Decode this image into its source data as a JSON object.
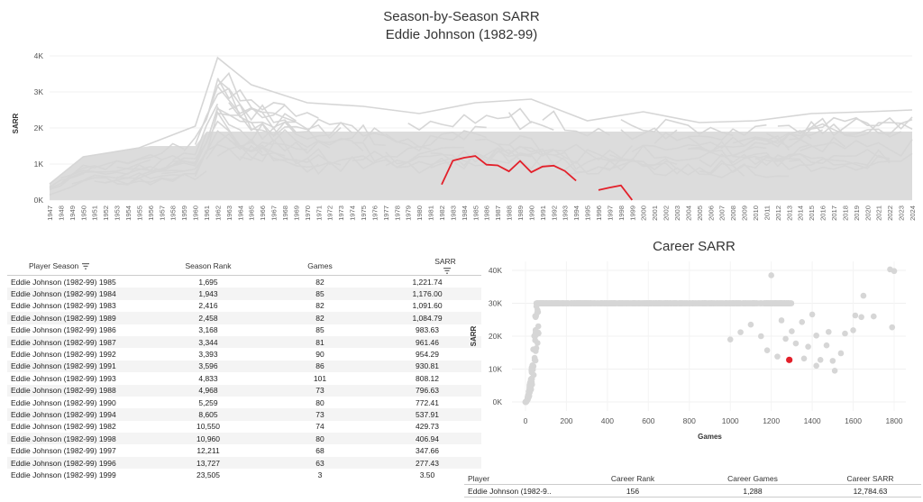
{
  "title_line1": "Season-by-Season SARR",
  "title_line2": "Eddie Johnson (1982-99)",
  "career_title": "Career SARR",
  "colors": {
    "highlight": "#e3202a",
    "background_series": "#d6d6d6",
    "grid": "#eeeeee"
  },
  "chart_data": [
    {
      "type": "line",
      "ylabel": "SARR",
      "xlabel": "",
      "xlim": [
        1947,
        2024
      ],
      "ylim": [
        0,
        4000
      ],
      "yticks": [
        0,
        1000,
        2000,
        3000,
        4000
      ],
      "ytick_labels": [
        "0K",
        "1K",
        "2K",
        "3K",
        "4K"
      ],
      "background_series_note": "many gray league player lines",
      "highlight_series": {
        "segments": [
          {
            "x": [
              1982,
              1983,
              1984,
              1985,
              1986,
              1987,
              1988,
              1989,
              1990,
              1991,
              1992,
              1993,
              1994
            ],
            "y": [
              429.73,
              1091.6,
              1176.0,
              1221.74,
              983.63,
              961.46,
              796.63,
              1084.79,
              772.41,
              930.81,
              954.29,
              808.12,
              537.91
            ]
          },
          {
            "x": [
              1996,
              1997,
              1998,
              1999
            ],
            "y": [
              277.43,
              347.66,
              406.94,
              3.5
            ]
          }
        ]
      },
      "background_envelope": {
        "x": [
          1947,
          1950,
          1955,
          1960,
          1962,
          1965,
          1970,
          1975,
          1980,
          1985,
          1990,
          1995,
          2000,
          2005,
          2010,
          2015,
          2020,
          2024
        ],
        "y": [
          450,
          1200,
          1450,
          2050,
          3950,
          3200,
          2700,
          2600,
          2400,
          2700,
          2800,
          2200,
          2450,
          2150,
          2200,
          2400,
          2450,
          2500
        ]
      }
    },
    {
      "type": "scatter",
      "title": "Career SARR",
      "xlabel": "Games",
      "ylabel": "SARR",
      "xlim": [
        0,
        1800
      ],
      "ylim": [
        0,
        40000
      ],
      "xticks": [
        0,
        200,
        400,
        600,
        800,
        1000,
        1200,
        1400,
        1600,
        1800
      ],
      "yticks": [
        0,
        10000,
        20000,
        30000,
        40000
      ],
      "ytick_labels": [
        "0K",
        "10K",
        "20K",
        "30K",
        "40K"
      ],
      "highlight_point": {
        "x": 1288,
        "y": 12784.63
      },
      "outliers": [
        {
          "x": 1200,
          "y": 38500
        },
        {
          "x": 1780,
          "y": 40300
        },
        {
          "x": 1800,
          "y": 39800
        },
        {
          "x": 1790,
          "y": 22700
        },
        {
          "x": 1650,
          "y": 32300
        },
        {
          "x": 1610,
          "y": 26300
        },
        {
          "x": 1640,
          "y": 25800
        },
        {
          "x": 1560,
          "y": 20800
        },
        {
          "x": 1540,
          "y": 14800
        },
        {
          "x": 1480,
          "y": 21300
        },
        {
          "x": 1400,
          "y": 26600
        },
        {
          "x": 1420,
          "y": 20200
        },
        {
          "x": 1380,
          "y": 16800
        },
        {
          "x": 1350,
          "y": 24300
        },
        {
          "x": 1300,
          "y": 21500
        },
        {
          "x": 1250,
          "y": 24800
        },
        {
          "x": 1500,
          "y": 12500
        },
        {
          "x": 1510,
          "y": 9500
        },
        {
          "x": 1440,
          "y": 12800
        },
        {
          "x": 1470,
          "y": 17200
        },
        {
          "x": 1100,
          "y": 23500
        },
        {
          "x": 1050,
          "y": 21200
        },
        {
          "x": 1150,
          "y": 20000
        },
        {
          "x": 1320,
          "y": 17800
        },
        {
          "x": 1600,
          "y": 21800
        },
        {
          "x": 1700,
          "y": 26000
        },
        {
          "x": 1000,
          "y": 19000
        },
        {
          "x": 1270,
          "y": 19200
        },
        {
          "x": 1180,
          "y": 15700
        },
        {
          "x": 1420,
          "y": 11000
        },
        {
          "x": 1360,
          "y": 13200
        },
        {
          "x": 1230,
          "y": 13800
        }
      ]
    }
  ],
  "season_table": {
    "headers": [
      "Player Season",
      "Season Rank",
      "Games",
      "SARR"
    ],
    "rows": [
      [
        "Eddie Johnson (1982-99) 1985",
        "1,695",
        "82",
        "1,221.74"
      ],
      [
        "Eddie Johnson (1982-99) 1984",
        "1,943",
        "85",
        "1,176.00"
      ],
      [
        "Eddie Johnson (1982-99) 1983",
        "2,416",
        "82",
        "1,091.60"
      ],
      [
        "Eddie Johnson (1982-99) 1989",
        "2,458",
        "82",
        "1,084.79"
      ],
      [
        "Eddie Johnson (1982-99) 1986",
        "3,168",
        "85",
        "983.63"
      ],
      [
        "Eddie Johnson (1982-99) 1987",
        "3,344",
        "81",
        "961.46"
      ],
      [
        "Eddie Johnson (1982-99) 1992",
        "3,393",
        "90",
        "954.29"
      ],
      [
        "Eddie Johnson (1982-99) 1991",
        "3,596",
        "86",
        "930.81"
      ],
      [
        "Eddie Johnson (1982-99) 1993",
        "4,833",
        "101",
        "808.12"
      ],
      [
        "Eddie Johnson (1982-99) 1988",
        "4,968",
        "73",
        "796.63"
      ],
      [
        "Eddie Johnson (1982-99) 1990",
        "5,259",
        "80",
        "772.41"
      ],
      [
        "Eddie Johnson (1982-99) 1994",
        "8,605",
        "73",
        "537.91"
      ],
      [
        "Eddie Johnson (1982-99) 1982",
        "10,550",
        "74",
        "429.73"
      ],
      [
        "Eddie Johnson (1982-99) 1998",
        "10,960",
        "80",
        "406.94"
      ],
      [
        "Eddie Johnson (1982-99) 1997",
        "12,211",
        "68",
        "347.66"
      ],
      [
        "Eddie Johnson (1982-99) 1996",
        "13,727",
        "63",
        "277.43"
      ],
      [
        "Eddie Johnson (1982-99) 1999",
        "23,505",
        "3",
        "3.50"
      ]
    ]
  },
  "career_table": {
    "headers": [
      "Player",
      "Career Rank",
      "Career Games",
      "Career SARR"
    ],
    "row": [
      "Eddie Johnson (1982-9..",
      "156",
      "1,288",
      "12,784.63"
    ]
  }
}
